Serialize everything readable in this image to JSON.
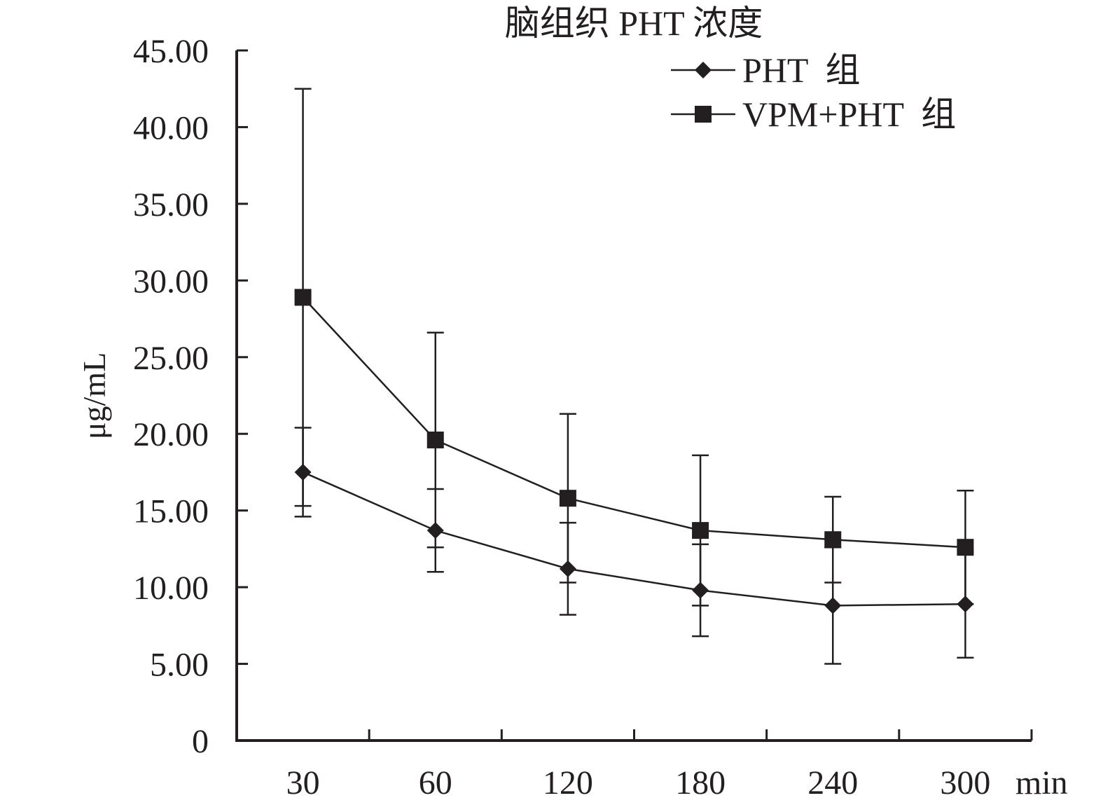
{
  "chart_data": {
    "type": "line",
    "title": "脑组织 PHT 浓度",
    "ylabel": "μg/mL",
    "xunit": "min",
    "categories": [
      "30",
      "60",
      "120",
      "180",
      "240",
      "300"
    ],
    "ylim": [
      0,
      45
    ],
    "yticks": [
      "0",
      "5.00",
      "10.00",
      "15.00",
      "20.00",
      "25.00",
      "30.00",
      "35.00",
      "40.00",
      "45.00"
    ],
    "legend_position": "top-right",
    "grid": false,
    "series": [
      {
        "name": "PHT  组",
        "marker": "diamond",
        "values": [
          17.5,
          13.7,
          11.2,
          9.8,
          8.8,
          8.9
        ],
        "error": [
          2.9,
          2.7,
          3.0,
          3.0,
          3.8,
          3.5
        ]
      },
      {
        "name": "VPM+PHT  组",
        "marker": "square",
        "values": [
          28.9,
          19.6,
          15.8,
          13.7,
          13.1,
          12.6
        ],
        "error": [
          13.6,
          7.0,
          5.5,
          4.9,
          2.8,
          3.7
        ]
      }
    ],
    "colors": {
      "line": "#231f20",
      "background": "#ffffff"
    }
  }
}
